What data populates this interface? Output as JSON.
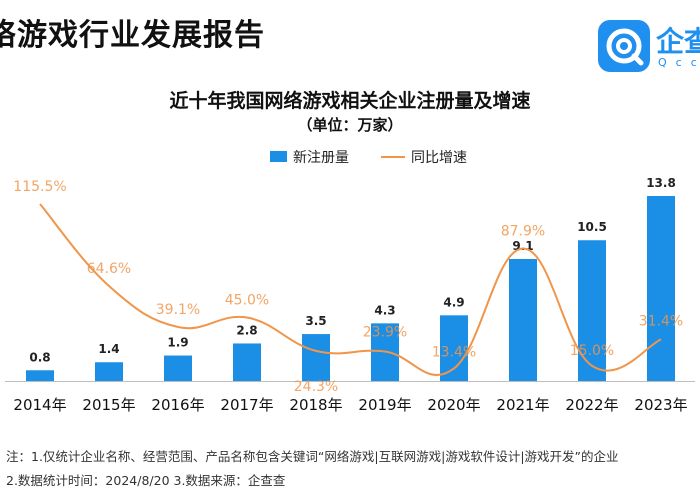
{
  "header": {
    "title": "络游戏行业发展报告"
  },
  "brand": {
    "name": "企查",
    "sub": "Qcc"
  },
  "chart_data": {
    "type": "bar",
    "title": "近十年我国网络游戏相关企业注册量及增速",
    "subtitle": "（单位：万家）",
    "categories": [
      "2014年",
      "2015年",
      "2016年",
      "2017年",
      "2018年",
      "2019年",
      "2020年",
      "2021年",
      "2022年",
      "2023年"
    ],
    "series": [
      {
        "name": "新注册量",
        "type": "bar",
        "color": "#1b8fe6",
        "values": [
          0.8,
          1.4,
          1.9,
          2.8,
          3.5,
          4.3,
          4.9,
          9.1,
          10.5,
          13.8
        ],
        "labels": [
          "0.8",
          "1.4",
          "1.9",
          "2.8",
          "3.5",
          "4.3",
          "4.9",
          "9.1",
          "10.5",
          "13.8"
        ]
      },
      {
        "name": "同比增速",
        "type": "line",
        "color": "#f0954a",
        "values": [
          115.5,
          64.6,
          39.1,
          45.0,
          24.3,
          23.9,
          13.4,
          87.9,
          15.0,
          31.4
        ],
        "labels": [
          "115.5%",
          "64.6%",
          "39.1%",
          "45.0%",
          "24.3%",
          "23.9%",
          "13.4%",
          "87.9%",
          "15.0%",
          "31.4%"
        ]
      }
    ],
    "legend_position": "top-center",
    "grid": false
  },
  "footnotes": [
    "注：1.仅统计企业名称、经营范围、产品名称包含关键词“网络游戏|互联网游戏|游戏软件设计|游戏开发”的企业",
    "2.数据统计时间：2024/8/20    3.数据来源：企查查"
  ]
}
